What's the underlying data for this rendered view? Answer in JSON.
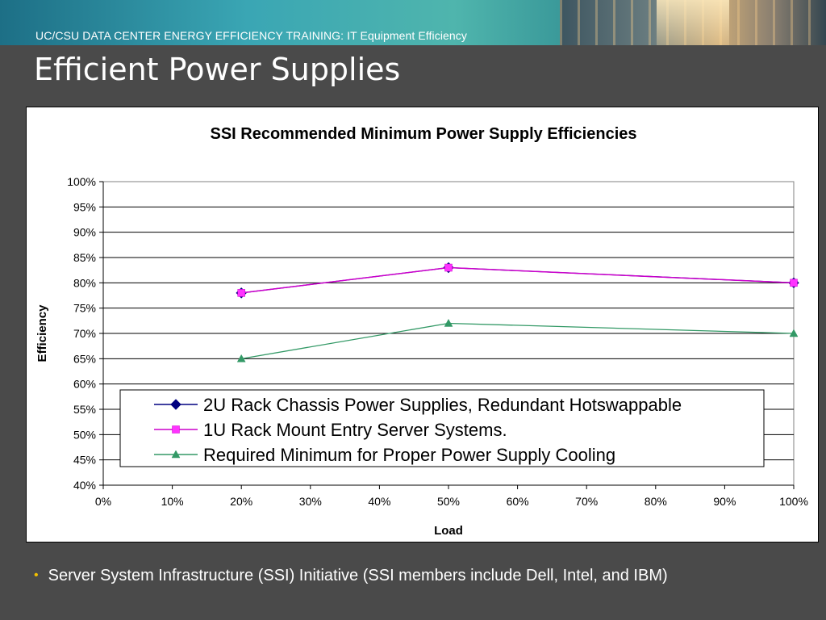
{
  "header": {
    "banner_prefix": "UC/CSU DATA CENTER ENERGY EFFICIENCY TRAINING:",
    "banner_suffix": "IT Equipment Efficiency"
  },
  "slide": {
    "title": "Efficient Power Supplies",
    "bullet": "Server System Infrastructure (SSI) Initiative (SSI members include Dell, Intel, and IBM)"
  },
  "colors": {
    "series_2u": "#000080",
    "series_2u_fill": "#000080",
    "series_1u": "#cc00cc",
    "series_1u_fill": "#ff33ff",
    "series_min": "#339966",
    "bullet": "#f2c000"
  },
  "chart_data": {
    "type": "line",
    "title": "SSI Recommended Minimum Power Supply Efficiencies",
    "xlabel": "Load",
    "ylabel": "Efficiency",
    "xlim": [
      0,
      100
    ],
    "ylim": [
      40,
      100
    ],
    "x_ticks": [
      "0%",
      "10%",
      "20%",
      "30%",
      "40%",
      "50%",
      "60%",
      "70%",
      "80%",
      "90%",
      "100%"
    ],
    "y_ticks": [
      "100%",
      "95%",
      "90%",
      "85%",
      "80%",
      "75%",
      "70%",
      "65%",
      "60%",
      "55%",
      "50%",
      "45%",
      "40%"
    ],
    "grid": true,
    "legend_position": "bottom-inside",
    "series": [
      {
        "name": "2U Rack Chassis Power Supplies, Redundant Hotswappable",
        "marker": "diamond",
        "x": [
          20,
          50,
          100
        ],
        "values": [
          78,
          83,
          80
        ]
      },
      {
        "name": "1U Rack Mount Entry Server Systems.",
        "marker": "square",
        "x": [
          20,
          50,
          100
        ],
        "values": [
          78,
          83,
          80
        ]
      },
      {
        "name": "Required Minimum for Proper Power Supply Cooling",
        "marker": "triangle",
        "x": [
          20,
          50,
          100
        ],
        "values": [
          65,
          72,
          70
        ]
      }
    ]
  }
}
